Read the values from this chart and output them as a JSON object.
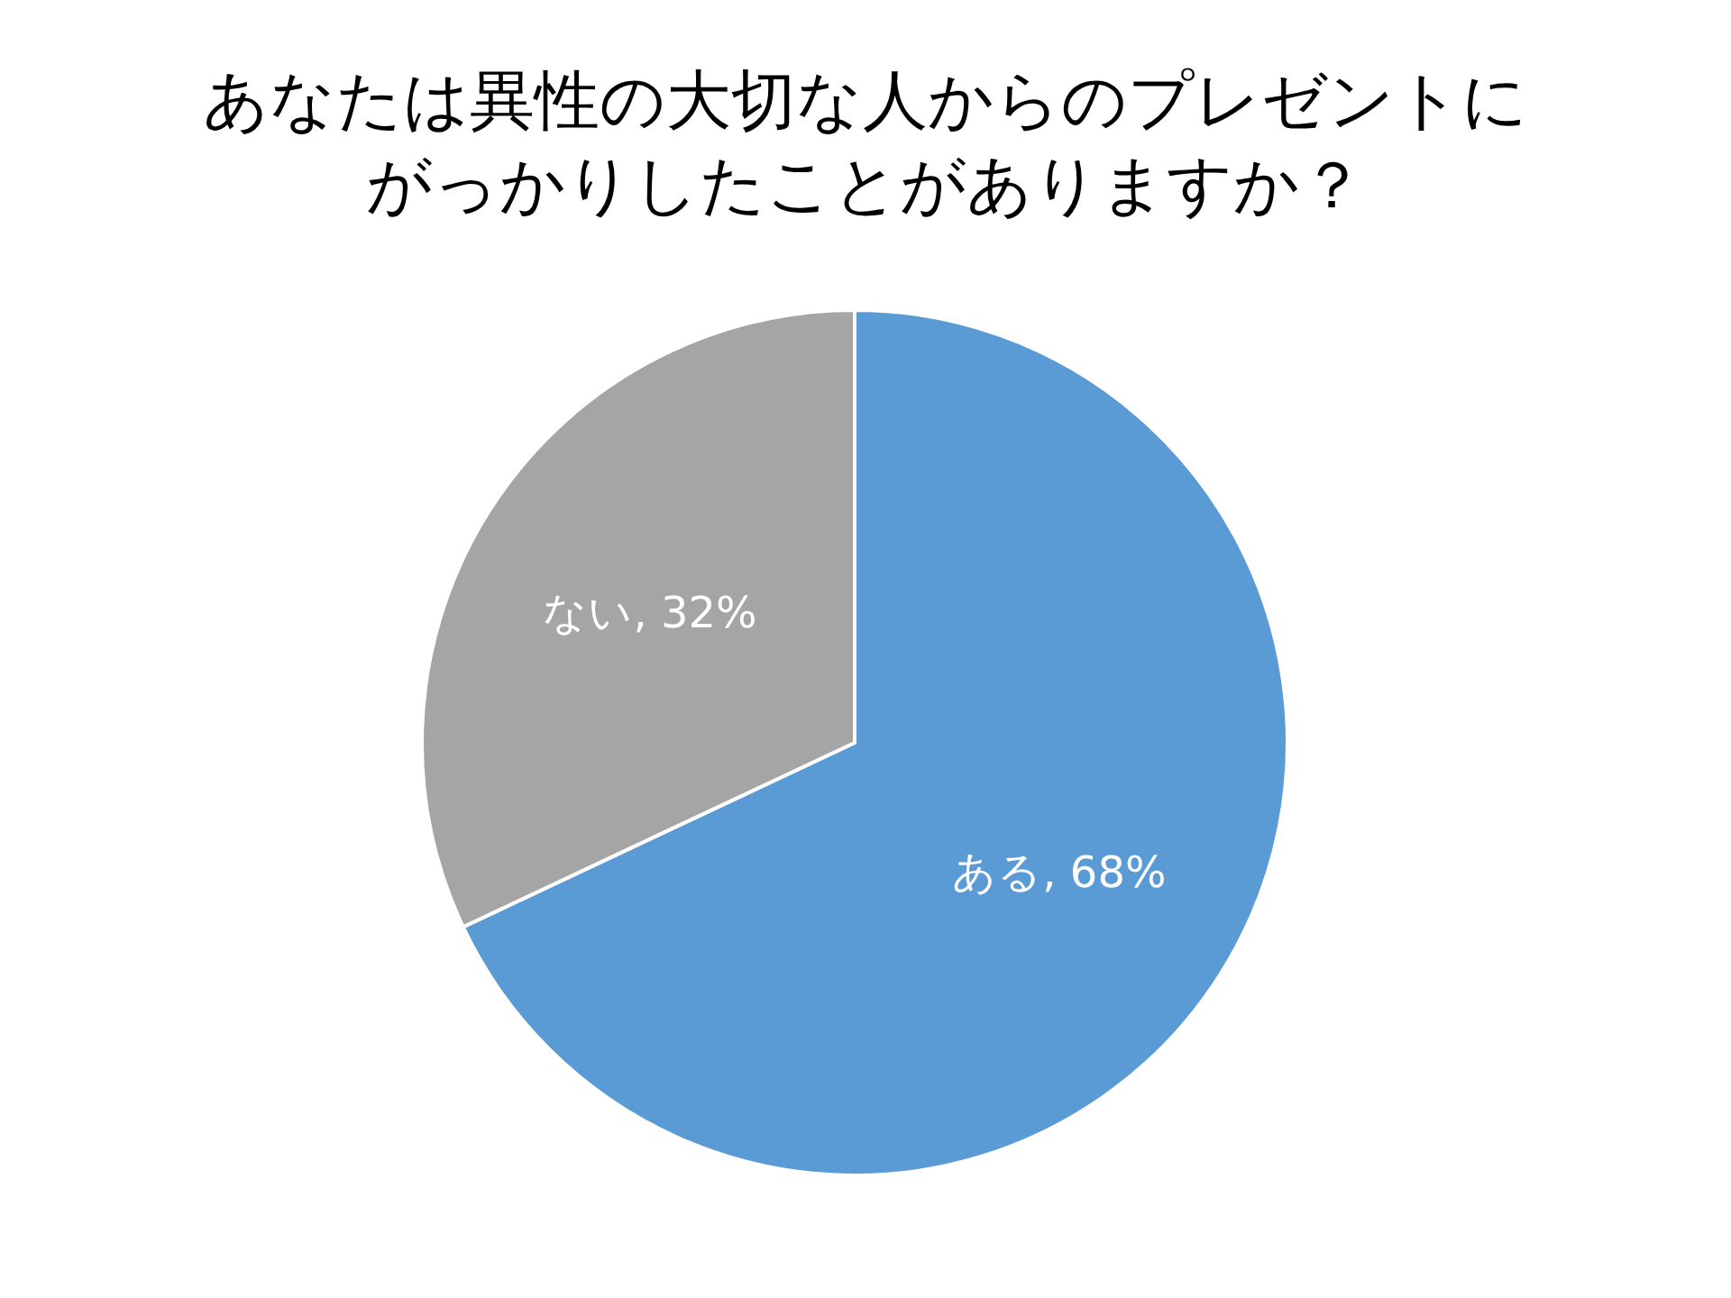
{
  "chart_data": {
    "type": "pie",
    "title": "あなたは異性の大切な人からのプレゼントにがっかりしたことがありますか？",
    "categories": [
      "ある",
      "ない"
    ],
    "values": [
      68,
      32
    ],
    "colors": [
      "#5b9bd5",
      "#a5a5a5"
    ],
    "value_labels": [
      "68%",
      "32%"
    ]
  }
}
